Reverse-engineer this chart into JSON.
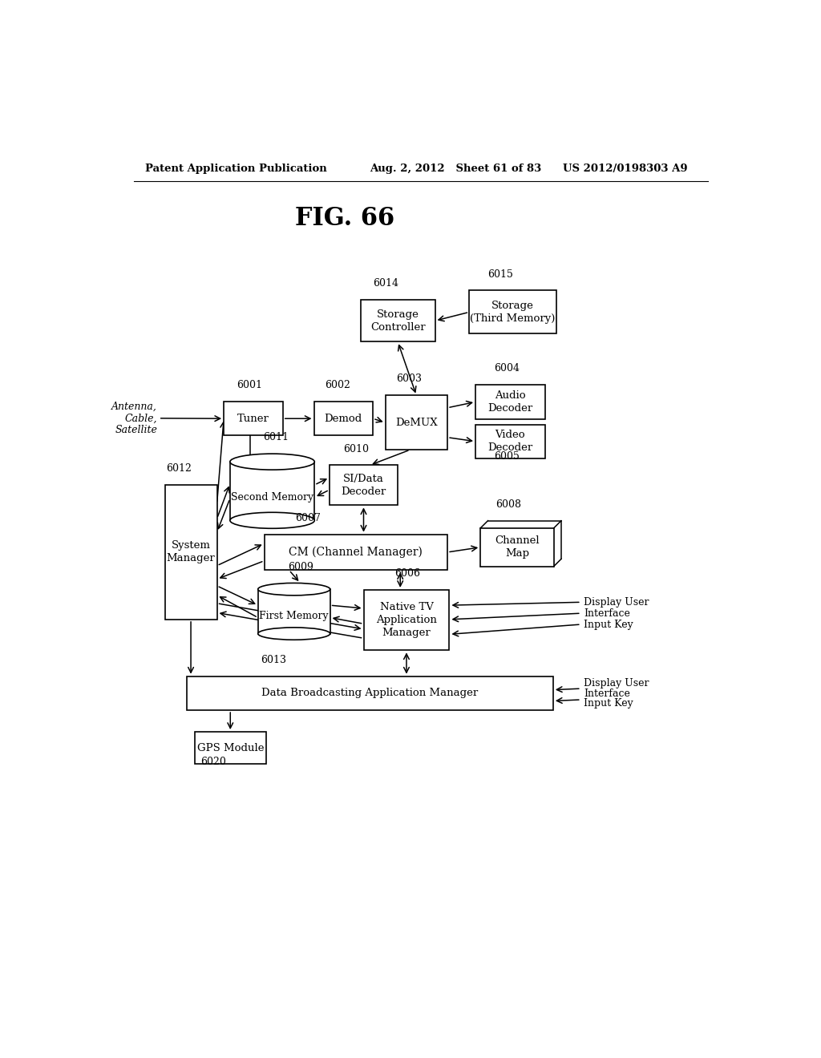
{
  "title": "FIG. 66",
  "header_left": "Patent Application Publication",
  "header_mid": "Aug. 2, 2012   Sheet 61 of 83",
  "header_right": "US 2012/0198303 A9",
  "background_color": "#ffffff"
}
